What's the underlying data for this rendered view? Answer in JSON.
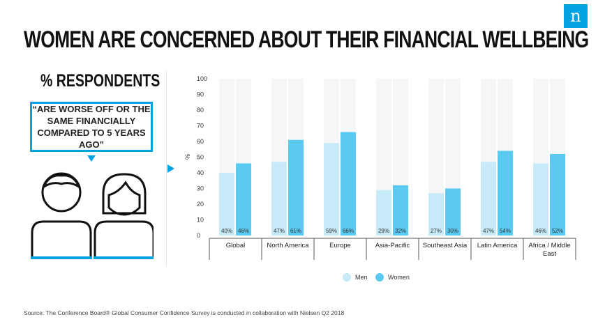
{
  "brand": {
    "logo_letter": "n",
    "accent": "#00a3e0"
  },
  "title": "WOMEN ARE CONCERNED ABOUT THEIR FINANCIAL WELLBEING",
  "left_panel": {
    "heading": "% RESPONDENTS",
    "quote": "“ARE WORSE OFF OR THE SAME FINANCIALLY COMPARED TO 5 YEARS AGO”",
    "icons": [
      "man-icon",
      "woman-icon"
    ]
  },
  "source": "Source: The Conference Board® Global Consumer Confidence Survey is conducted in collaboration with Nielsen Q2 2018",
  "chart_data": {
    "type": "bar",
    "categories": [
      "Global",
      "North America",
      "Europe",
      "Asia-Pacific",
      "Southeast Asia",
      "Latin America",
      "Africa / Middle East"
    ],
    "series": [
      {
        "name": "Men",
        "values": [
          40,
          47,
          59,
          29,
          27,
          47,
          46
        ],
        "color": "#c6eaf8"
      },
      {
        "name": "Women",
        "values": [
          46,
          61,
          66,
          32,
          30,
          54,
          52
        ],
        "color": "#5bcaf0"
      }
    ],
    "value_labels": [
      [
        "40%",
        "47%",
        "59%",
        "29%",
        "27%",
        "47%",
        "46%"
      ],
      [
        "46%",
        "61%",
        "66%",
        "32%",
        "30%",
        "54%",
        "52%"
      ]
    ],
    "ylabel": "%",
    "ylim": [
      0,
      100
    ],
    "yticks": [
      0,
      10,
      20,
      30,
      40,
      50,
      60,
      70,
      80,
      90,
      100
    ],
    "background_column_color": "#f4f6f8",
    "legend_position": "bottom-center",
    "grid": false
  }
}
